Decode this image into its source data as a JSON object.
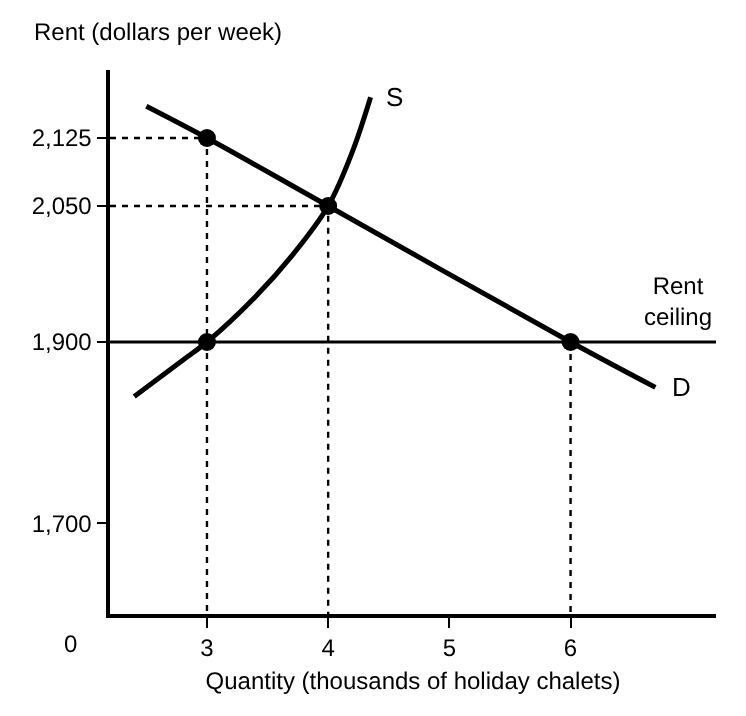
{
  "chart_data": {
    "type": "line",
    "ylabel": "Rent (dollars per week)",
    "xlabel": "Quantity (thousands of holiday chalets)",
    "xlim": [
      2.2,
      7.2
    ],
    "xticks": [
      3,
      4,
      5,
      6
    ],
    "ylim": [
      1600,
      2200
    ],
    "yticks": [
      {
        "value": 1700,
        "label": "1,700"
      },
      {
        "value": 1900,
        "label": "1,900"
      },
      {
        "value": 2050,
        "label": "2,050"
      },
      {
        "value": 2125,
        "label": "2,125"
      }
    ],
    "series": [
      {
        "name": "S",
        "color": "#000000",
        "line_style": "solid",
        "marker": "none",
        "x": [
          2.4,
          2.8,
          3,
          3.4,
          3.7,
          4,
          4.2,
          4.35
        ],
        "values": [
          1840,
          1880,
          1900,
          1950,
          1995,
          2050,
          2110,
          2170
        ]
      },
      {
        "name": "D",
        "color": "#000000",
        "line_style": "solid",
        "marker": "none",
        "x": [
          2.5,
          3,
          4,
          6,
          6.7
        ],
        "values": [
          2160,
          2125,
          2050,
          1900,
          1850
        ]
      },
      {
        "type": "line",
        "color": "#000000",
        "line_style": "dotted",
        "marker": "none",
        "x": [
          2.2,
          3,
          3
        ],
        "values": [
          2125,
          2125,
          1600
        ]
      },
      {
        "type": "line",
        "color": "#000000",
        "line_style": "dotted",
        "marker": "none",
        "x": [
          2.2,
          4,
          4
        ],
        "values": [
          2050,
          2050,
          1600
        ]
      },
      {
        "type": "line",
        "color": "#000000",
        "line_style": "dotted",
        "marker": "none",
        "x": [
          6,
          6
        ],
        "values": [
          1900,
          1600
        ]
      },
      {
        "type": "scatter",
        "color": "#000000",
        "marker": "circle",
        "x": [
          3,
          4,
          3,
          6
        ],
        "values": [
          2125,
          2050,
          1900,
          1900
        ]
      }
    ],
    "ref_lines": [
      {
        "axis": "y",
        "value": 1900,
        "label": "Rent ceiling",
        "color": "#000000",
        "line_style": "solid"
      }
    ],
    "annotations": [
      "0"
    ]
  }
}
